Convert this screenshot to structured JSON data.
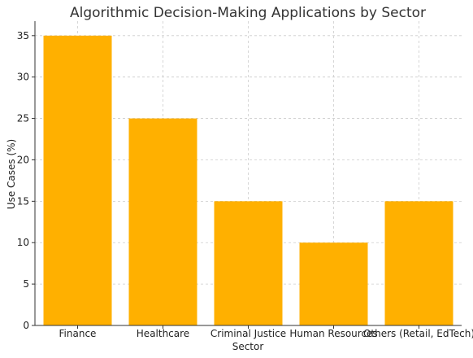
{
  "chart_data": {
    "type": "bar",
    "title": "Algorithmic Decision-Making Applications by Sector",
    "xlabel": "Sector",
    "ylabel": "Use Cases (%)",
    "categories": [
      "Finance",
      "Healthcare",
      "Criminal Justice",
      "Human Resources",
      "Others (Retail, EdTech)"
    ],
    "values": [
      35,
      25,
      15,
      10,
      15
    ],
    "ylim": [
      0,
      36.75
    ],
    "yticks": [
      0,
      5,
      10,
      15,
      20,
      25,
      30,
      35
    ],
    "grid": true,
    "legend": "none",
    "colors": {
      "bar": "#FFB000",
      "grid": "#cccccc",
      "axis": "#333333",
      "title": "#333333"
    }
  }
}
